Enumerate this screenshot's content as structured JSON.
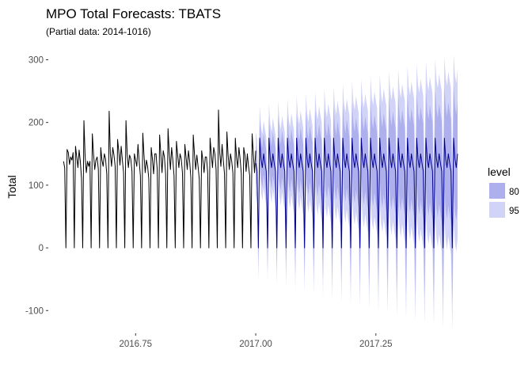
{
  "chart_data": {
    "type": "line",
    "title": "MPO Total Forecasts: TBATS",
    "subtitle": "(Partial data: 2014-1016)",
    "xlabel": "",
    "ylabel": "Total",
    "xlim": [
      2016.57,
      2017.42
    ],
    "ylim": [
      -135,
      312
    ],
    "x_ticks": [
      2016.75,
      2017.0,
      2017.25
    ],
    "x_tick_labels": [
      "2016.75",
      "2017.00",
      "2017.25"
    ],
    "y_ticks": [
      -100,
      0,
      100,
      200,
      300
    ],
    "y_tick_labels": [
      "-100",
      "0",
      "100",
      "200",
      "300"
    ],
    "grid": false,
    "legend": {
      "title": "level",
      "position": "right",
      "entries": [
        {
          "label": "80",
          "color": "#aeb0ee"
        },
        {
          "label": "95",
          "color": "#d1d3f7"
        }
      ]
    },
    "colors": {
      "history_line": "#000000",
      "forecast_line": "#00008b",
      "band_80": "#aeb0ee",
      "band_95": "#d1d3f7"
    },
    "history": {
      "x_start": 2016.6,
      "x_end": 2017.0,
      "weeks": [
        [
          138,
          128,
          0,
          157,
          152,
          133,
          145
        ],
        [
          140,
          152,
          0,
          162,
          145,
          128,
          156
        ],
        [
          138,
          110,
          0,
          203,
          146,
          120,
          138
        ],
        [
          130,
          138,
          0,
          182,
          150,
          125,
          140
        ],
        [
          145,
          125,
          0,
          160,
          140,
          130,
          150
        ],
        [
          142,
          118,
          0,
          218,
          150,
          130,
          160
        ],
        [
          148,
          130,
          0,
          173,
          155,
          132,
          162
        ],
        [
          140,
          120,
          0,
          203,
          150,
          128,
          148
        ],
        [
          142,
          122,
          0,
          150,
          140,
          130,
          165
        ],
        [
          138,
          115,
          0,
          183,
          148,
          120,
          140
        ],
        [
          130,
          110,
          0,
          160,
          142,
          118,
          150
        ],
        [
          150,
          125,
          0,
          180,
          150,
          120,
          155
        ],
        [
          145,
          118,
          0,
          190,
          152,
          125,
          160
        ],
        [
          140,
          115,
          0,
          170,
          148,
          128,
          150
        ],
        [
          142,
          120,
          0,
          165,
          145,
          125,
          155
        ],
        [
          138,
          112,
          0,
          180,
          150,
          125,
          148
        ],
        [
          130,
          110,
          0,
          155,
          140,
          120,
          145
        ],
        [
          145,
          120,
          0,
          175,
          150,
          128,
          160
        ],
        [
          150,
          125,
          0,
          220,
          152,
          130,
          165
        ],
        [
          140,
          118,
          0,
          185,
          148,
          125,
          150
        ],
        [
          138,
          120,
          0,
          175,
          145,
          128,
          160
        ],
        [
          142,
          118,
          0,
          160,
          148,
          122,
          150
        ],
        [
          130,
          115,
          0,
          182,
          150,
          120,
          155
        ]
      ]
    },
    "forecast": {
      "x_start": 2017.0,
      "x_end": 2017.42,
      "week_profile": [
        135,
        122,
        0,
        175,
        142,
        128,
        150
      ],
      "n_weeks": 22,
      "band_80_halfwidth_start": 30,
      "band_80_halfwidth_end": 85,
      "band_95_halfwidth_start": 50,
      "band_95_halfwidth_end": 135
    }
  }
}
